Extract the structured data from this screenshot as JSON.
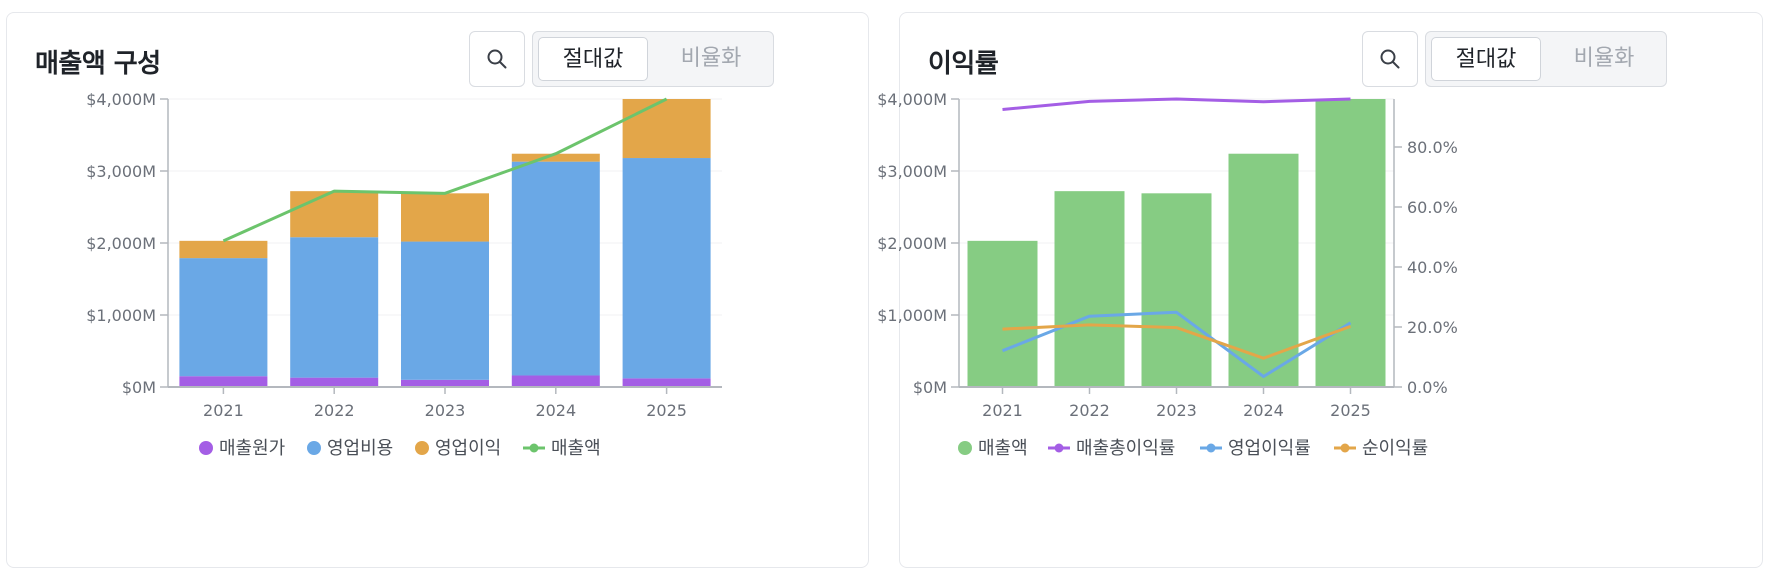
{
  "panels": [
    {
      "title": "매출액 구성",
      "segmented": {
        "options": [
          "절대값",
          "비율화"
        ],
        "selected": "절대값"
      }
    },
    {
      "title": "이익률",
      "segmented": {
        "options": [
          "절대값",
          "비율화"
        ],
        "selected": "절대값"
      }
    }
  ],
  "chart_data": [
    {
      "type": "bar",
      "stacked": true,
      "categories": [
        "2021",
        "2022",
        "2023",
        "2024",
        "2025"
      ],
      "series": [
        {
          "name": "매출원가",
          "kind": "bar",
          "color": "#a45ee5",
          "values": [
            150,
            130,
            100,
            160,
            120
          ]
        },
        {
          "name": "영업비용",
          "kind": "bar",
          "color": "#6aa8e6",
          "values": [
            1640,
            1950,
            1920,
            2970,
            3060
          ]
        },
        {
          "name": "영업이익",
          "kind": "bar",
          "color": "#e3a649",
          "values": [
            240,
            640,
            670,
            110,
            870
          ]
        },
        {
          "name": "매출액",
          "kind": "line",
          "color": "#6cc46c",
          "values": [
            2030,
            2720,
            2690,
            3240,
            4050
          ]
        }
      ],
      "y_axis": {
        "ticks": [
          "$0M",
          "$1,000M",
          "$2,000M",
          "$3,000M",
          "$4,000M"
        ],
        "ylim": [
          0,
          4000
        ]
      },
      "grid": true,
      "legend": "bottom"
    },
    {
      "type": "bar",
      "categories": [
        "2021",
        "2022",
        "2023",
        "2024",
        "2025"
      ],
      "series": [
        {
          "name": "매출액",
          "kind": "bar",
          "axis": "left",
          "color": "#86cc83",
          "values": [
            2030,
            2720,
            2690,
            3240,
            4050
          ]
        },
        {
          "name": "매출총이익률",
          "kind": "line",
          "axis": "right",
          "color": "#a45ee5",
          "values": [
            92.5,
            95.2,
            96.3,
            95.1,
            96.9
          ]
        },
        {
          "name": "영업이익률",
          "kind": "line",
          "axis": "right",
          "color": "#6aa8e6",
          "values": [
            12.1,
            23.6,
            24.9,
            3.5,
            21.4
          ]
        },
        {
          "name": "순이익률",
          "kind": "line",
          "axis": "right",
          "color": "#e3a649",
          "values": [
            19.3,
            20.7,
            19.8,
            9.6,
            20.2
          ]
        }
      ],
      "y_axis": {
        "ticks": [
          "$0M",
          "$1,000M",
          "$2,000M",
          "$3,000M",
          "$4,000M"
        ],
        "ylim": [
          0,
          4000
        ]
      },
      "y2_axis": {
        "ticks": [
          "0.0%",
          "20.0%",
          "40.0%",
          "60.0%",
          "80.0%"
        ],
        "ylim": [
          0,
          96
        ]
      },
      "grid": true,
      "legend": "bottom"
    }
  ]
}
